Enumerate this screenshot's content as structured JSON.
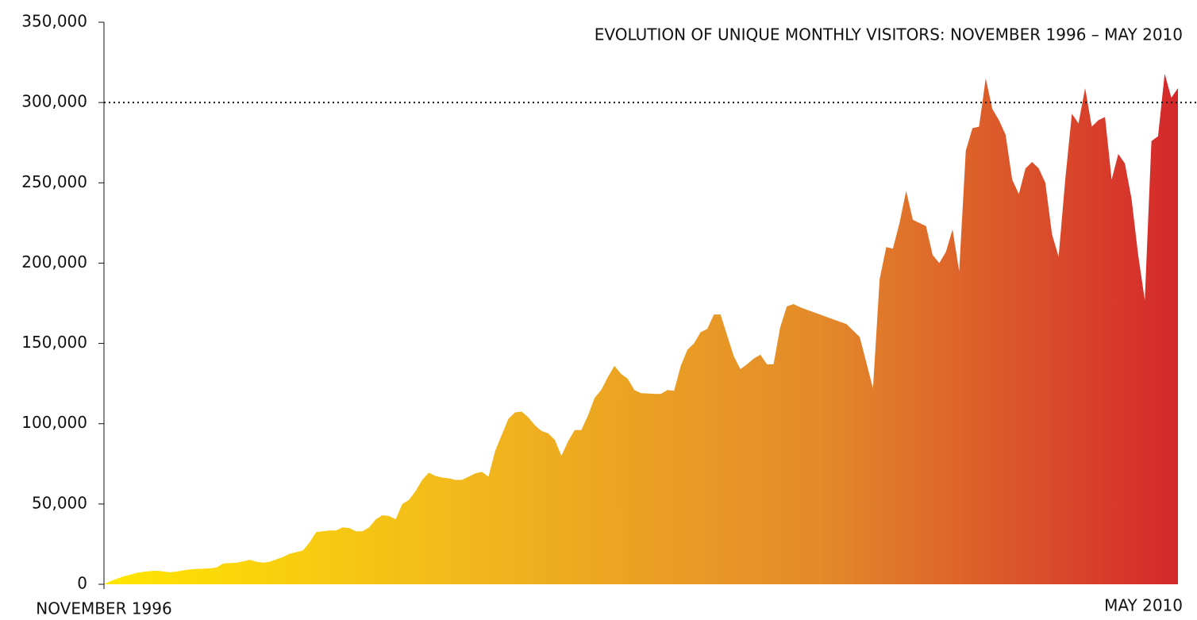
{
  "chart_data": {
    "type": "area",
    "title": "EVOLUTION OF UNIQUE MONTHLY VISITORS: NOVEMBER 1996 – MAY 2010",
    "categories": [
      "NOVEMBER 1996",
      null,
      null,
      null,
      null,
      null,
      null,
      null,
      null,
      null,
      null,
      null,
      null,
      null,
      null,
      null,
      null,
      null,
      null,
      null,
      null,
      null,
      null,
      null,
      null,
      null,
      null,
      null,
      null,
      null,
      null,
      null,
      null,
      null,
      null,
      null,
      null,
      null,
      null,
      null,
      null,
      null,
      null,
      null,
      null,
      null,
      null,
      null,
      null,
      null,
      null,
      null,
      null,
      null,
      null,
      null,
      null,
      null,
      null,
      null,
      null,
      null,
      null,
      null,
      null,
      null,
      null,
      null,
      null,
      null,
      null,
      null,
      null,
      null,
      null,
      null,
      null,
      null,
      null,
      null,
      null,
      null,
      null,
      null,
      null,
      null,
      null,
      null,
      null,
      null,
      null,
      null,
      null,
      null,
      null,
      null,
      null,
      null,
      null,
      null,
      null,
      null,
      null,
      null,
      null,
      null,
      null,
      null,
      null,
      null,
      null,
      null,
      null,
      null,
      null,
      null,
      null,
      null,
      null,
      null,
      null,
      null,
      null,
      null,
      null,
      null,
      null,
      null,
      null,
      null,
      null,
      null,
      null,
      null,
      null,
      null,
      null,
      null,
      null,
      null,
      null,
      null,
      null,
      null,
      null,
      null,
      null,
      null,
      null,
      null,
      null,
      null,
      null,
      null,
      null,
      null,
      null,
      null,
      null,
      null,
      null,
      null,
      "MAY 2010"
    ],
    "values": [
      0,
      2000,
      3500,
      5000,
      6000,
      7200,
      7800,
      8200,
      8400,
      8000,
      7500,
      8000,
      8700,
      9300,
      9600,
      9700,
      9900,
      10500,
      13000,
      13200,
      13400,
      14300,
      15200,
      14000,
      13500,
      14000,
      15500,
      17000,
      19000,
      20000,
      21000,
      26000,
      32500,
      33000,
      33500,
      33500,
      35500,
      35000,
      33000,
      33000,
      35500,
      40500,
      43000,
      42500,
      40500,
      50000,
      52500,
      58000,
      65000,
      69500,
      67500,
      66500,
      66000,
      65000,
      65000,
      67000,
      69000,
      70000,
      67000,
      83000,
      93000,
      103000,
      107000,
      107500,
      104000,
      99000,
      95500,
      94000,
      90000,
      80000,
      89000,
      96000,
      96000,
      105000,
      116000,
      121000,
      129000,
      136000,
      131000,
      128000,
      121000,
      119000,
      118800,
      118600,
      118500,
      121000,
      120500,
      136000,
      146000,
      150000,
      157000,
      159000,
      168000,
      168000,
      155000,
      142000,
      134000,
      137000,
      140500,
      143000,
      137000,
      137000,
      160000,
      173000,
      174500,
      172500,
      171000,
      169500,
      168000,
      166500,
      165000,
      163500,
      162000,
      158000,
      154000,
      138000,
      122000,
      190000,
      210000,
      209000,
      225000,
      245000,
      227000,
      225000,
      223000,
      205000,
      200000,
      207000,
      221000,
      195000,
      270000,
      284000,
      285000,
      315000,
      296000,
      289000,
      280000,
      252000,
      243000,
      259000,
      263000,
      259000,
      250000,
      218000,
      204000,
      252000,
      293000,
      287000,
      309000,
      285000,
      289000,
      291000,
      252000,
      268000,
      262000,
      240000,
      205000,
      177000,
      276000,
      279000,
      318000,
      303000,
      309000
    ],
    "colors": [
      "#ffe600",
      "#f2b81c",
      "#e38a2a",
      "#d4282b"
    ],
    "ylim": [
      0,
      350000
    ],
    "yticks": [
      0,
      {
        "value": 50000,
        "label": "50,000"
      },
      {
        "value": 100000,
        "label": "100,000"
      },
      {
        "value": 150000,
        "label": "150,000"
      },
      {
        "value": 200000,
        "label": "200,000"
      },
      {
        "value": 250000,
        "label": "250,000"
      },
      {
        "value": 300000,
        "label": "300,000"
      },
      {
        "value": 350000,
        "label": "350,000"
      }
    ],
    "reference_line": 300000,
    "reference_color": "#d4202a"
  }
}
